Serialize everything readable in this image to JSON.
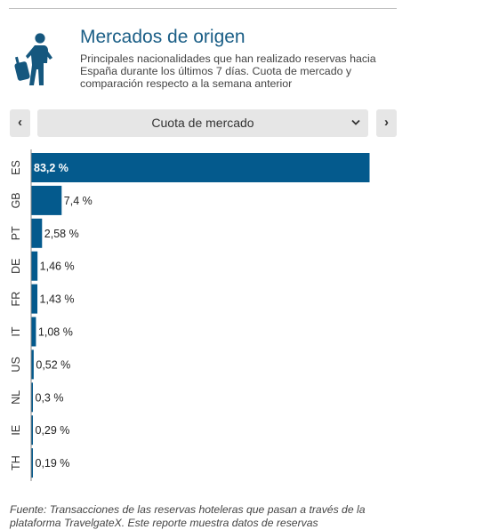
{
  "header": {
    "title": "Mercados de origen",
    "subtitle": "Principales nacionalidades que han realizado reservas hacia España durante los últimos 7 días. Cuota de mercado y comparación respecto a la semana anterior",
    "icon": "traveler-with-suitcase-icon"
  },
  "controls": {
    "prev_label": "‹",
    "next_label": "›",
    "selected_metric": "Cuota de mercado"
  },
  "chart_data": {
    "type": "bar",
    "orientation": "horizontal",
    "categories": [
      "ES",
      "GB",
      "PT",
      "DE",
      "FR",
      "IT",
      "US",
      "NL",
      "IE",
      "TH"
    ],
    "values": [
      83.2,
      7.4,
      2.58,
      1.46,
      1.43,
      1.08,
      0.52,
      0.3,
      0.29,
      0.19
    ],
    "value_labels": [
      "83,2 %",
      "7,4 %",
      "2,58 %",
      "1,46 %",
      "1,43 %",
      "1,08 %",
      "0,52 %",
      "0,3 %",
      "0,29 %",
      "0,19 %"
    ],
    "bar_color": "#045a8d",
    "label_inside_color": "#ffffff",
    "label_outside_color": "#222222",
    "axis_color": "#888888"
  },
  "footer": {
    "source_text": "Fuente: Transacciones de las reservas hoteleras que pasan a través de la plataforma TravelgateX. Este reporte muestra datos de reservas"
  }
}
